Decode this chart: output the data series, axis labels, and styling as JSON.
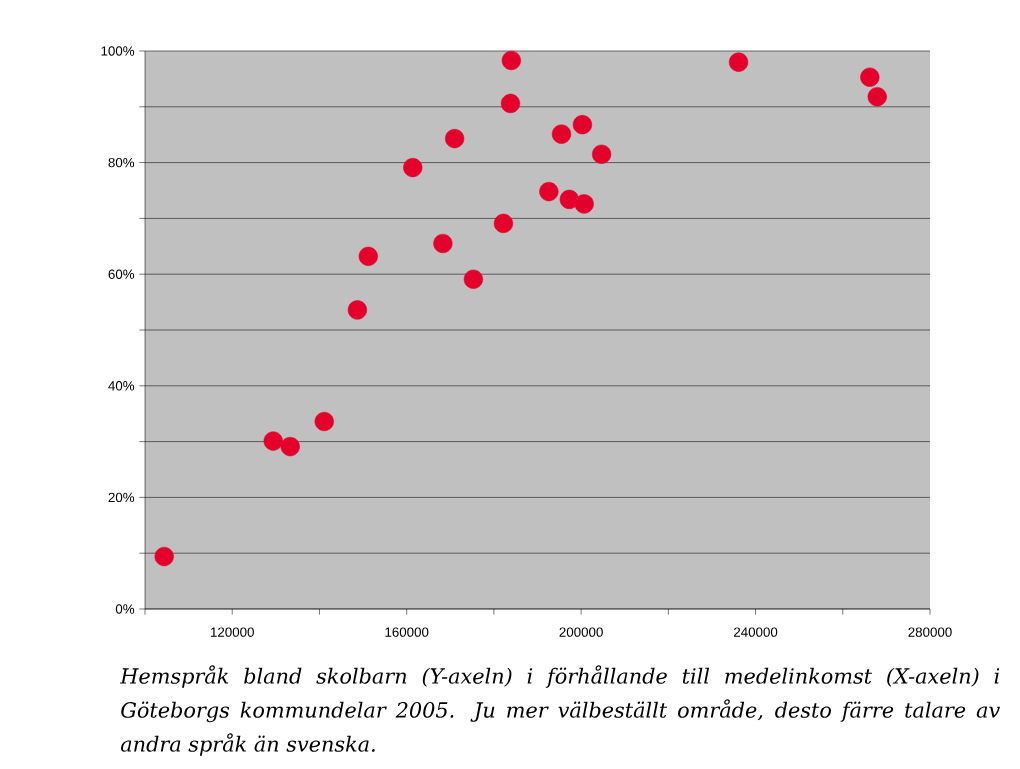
{
  "chart_data": {
    "type": "scatter",
    "x": [
      104400,
      129400,
      133300,
      141100,
      148700,
      151200,
      161400,
      168300,
      171000,
      175300,
      182200,
      184000,
      183800,
      192600,
      195500,
      197300,
      200300,
      200700,
      204700,
      236100,
      266200,
      267900
    ],
    "series": [
      {
        "color": "#e4002b",
        "values": [
          9.4,
          30.1,
          29.1,
          33.6,
          53.6,
          63.2,
          79.1,
          65.5,
          84.3,
          59.1,
          69.1,
          98.3,
          90.6,
          74.8,
          85.1,
          73.4,
          86.8,
          72.6,
          81.5,
          98.0,
          95.3,
          91.8
        ]
      }
    ],
    "xlim": [
      100000,
      280000
    ],
    "xticks": [
      {
        "value": 100000,
        "label": null
      },
      120000,
      {
        "value": 140000,
        "label": null
      },
      160000,
      {
        "value": 180000,
        "label": null
      },
      200000,
      {
        "value": 220000,
        "label": null
      },
      240000,
      {
        "value": 260000,
        "label": null
      },
      280000
    ],
    "ylim": [
      0,
      100
    ],
    "yticks": [
      {
        "value": 0,
        "label": "0%"
      },
      {
        "value": 10,
        "label": null
      },
      {
        "value": 20,
        "label": "20%"
      },
      {
        "value": 30,
        "label": null
      },
      {
        "value": 40,
        "label": "40%"
      },
      {
        "value": 50,
        "label": null
      },
      {
        "value": 60,
        "label": "60%"
      },
      {
        "value": 70,
        "label": null
      },
      {
        "value": 80,
        "label": "80%"
      },
      {
        "value": 90,
        "label": null
      },
      {
        "value": 100,
        "label": "100%"
      }
    ],
    "grid": "y",
    "marker": "circle",
    "annotations": [
      "Hemspråk bland skolbarn (Y-axeln) i förhållande till medelinkomst (X-axeln) i Göteborgs kommundelar 2005. Ju mer välbeställt område, desto färre talare av andra språk än svenska."
    ]
  }
}
